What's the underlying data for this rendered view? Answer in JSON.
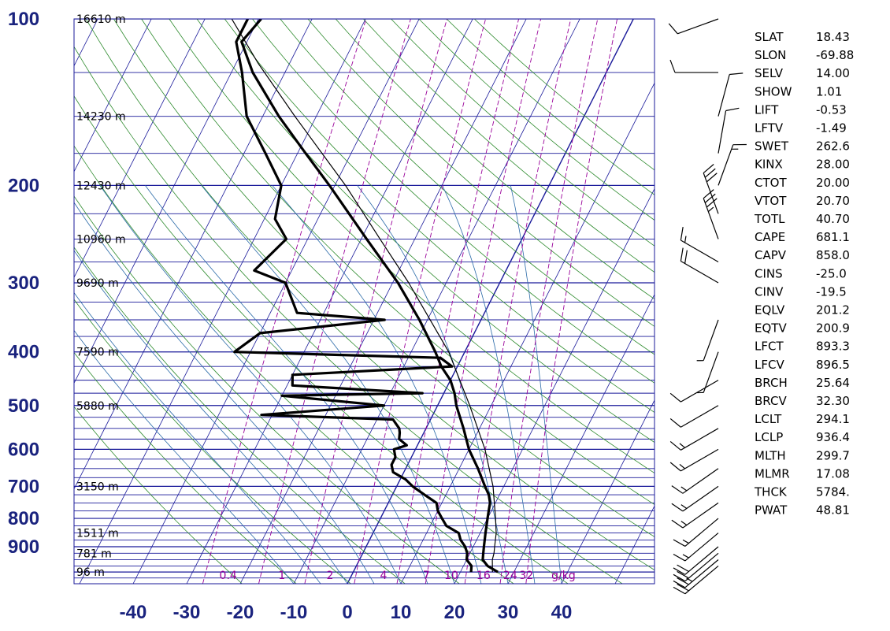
{
  "chart_data": {
    "type": "skew-t log-p sounding",
    "y_axis": {
      "unit_implied": "hPa",
      "ticks": [
        100,
        200,
        300,
        400,
        500,
        600,
        700,
        800,
        900
      ]
    },
    "x_axis": {
      "unit_implied": "°C",
      "ticks": [
        -40,
        -30,
        -20,
        -10,
        0,
        10,
        20,
        30,
        40
      ]
    },
    "height_labels": [
      {
        "p": 100,
        "text": "16610 m"
      },
      {
        "p": 150,
        "text": "14230 m"
      },
      {
        "p": 200,
        "text": "12430 m"
      },
      {
        "p": 250,
        "text": "10960 m"
      },
      {
        "p": 300,
        "text": "9690 m"
      },
      {
        "p": 400,
        "text": "7590 m"
      },
      {
        "p": 500,
        "text": "5880 m"
      },
      {
        "p": 700,
        "text": "3150 m"
      },
      {
        "p": 850,
        "text": "1511 m"
      },
      {
        "p": 925,
        "text": "781 m"
      },
      {
        "p": 1000,
        "text": "96 m"
      }
    ],
    "mixing_ratio_labels": [
      {
        "w": "0.4",
        "t": -25
      },
      {
        "w": "1",
        "t": -14
      },
      {
        "w": "2",
        "t": -5
      },
      {
        "w": "4",
        "t": 5
      },
      {
        "w": "7",
        "t": 13
      },
      {
        "w": "10",
        "t": 17
      },
      {
        "w": "16",
        "t": 23
      },
      {
        "w": "24",
        "t": 28
      },
      {
        "w": "32",
        "t": 31
      },
      {
        "w": "g/kg",
        "t": 37
      }
    ],
    "series": [
      {
        "role": "temperature",
        "points": [
          [
            1000,
            27
          ],
          [
            975,
            24.5
          ],
          [
            950,
            23
          ],
          [
            925,
            22.5
          ],
          [
            900,
            22
          ],
          [
            875,
            21.5
          ],
          [
            850,
            21
          ],
          [
            825,
            20.5
          ],
          [
            800,
            20
          ],
          [
            775,
            19.5
          ],
          [
            750,
            19
          ],
          [
            725,
            18
          ],
          [
            700,
            16.5
          ],
          [
            650,
            13.5
          ],
          [
            600,
            10
          ],
          [
            550,
            7
          ],
          [
            500,
            3.5
          ],
          [
            475,
            2
          ],
          [
            450,
            0
          ],
          [
            425,
            -3
          ],
          [
            400,
            -5.5
          ],
          [
            350,
            -11.5
          ],
          [
            300,
            -19
          ],
          [
            250,
            -29
          ],
          [
            200,
            -41
          ],
          [
            175,
            -48.5
          ],
          [
            150,
            -57
          ],
          [
            125,
            -66
          ],
          [
            110,
            -71
          ],
          [
            100,
            -69.5
          ]
        ]
      },
      {
        "role": "dewpoint",
        "points": [
          [
            1000,
            22
          ],
          [
            975,
            21.5
          ],
          [
            950,
            20
          ],
          [
            925,
            19.5
          ],
          [
            900,
            18.5
          ],
          [
            875,
            17
          ],
          [
            850,
            16
          ],
          [
            825,
            13
          ],
          [
            800,
            11.5
          ],
          [
            775,
            10
          ],
          [
            750,
            9
          ],
          [
            725,
            6
          ],
          [
            700,
            3
          ],
          [
            680,
            1
          ],
          [
            660,
            -2
          ],
          [
            640,
            -3
          ],
          [
            620,
            -3
          ],
          [
            600,
            -4
          ],
          [
            590,
            -2
          ],
          [
            575,
            -4
          ],
          [
            560,
            -4.5
          ],
          [
            550,
            -5
          ],
          [
            540,
            -6
          ],
          [
            530,
            -7
          ],
          [
            520,
            -32
          ],
          [
            500,
            -10
          ],
          [
            480,
            -30
          ],
          [
            475,
            -4
          ],
          [
            460,
            -29
          ],
          [
            440,
            -30
          ],
          [
            425,
            -1
          ],
          [
            410,
            -4
          ],
          [
            400,
            -43
          ],
          [
            370,
            -40
          ],
          [
            350,
            -18
          ],
          [
            340,
            -35
          ],
          [
            300,
            -40
          ],
          [
            285,
            -47
          ],
          [
            250,
            -44
          ],
          [
            230,
            -48
          ],
          [
            200,
            -50
          ],
          [
            175,
            -56
          ],
          [
            150,
            -63
          ],
          [
            125,
            -68
          ],
          [
            110,
            -72
          ],
          [
            100,
            -72
          ]
        ]
      },
      {
        "role": "parcel",
        "points": [
          [
            1000,
            26
          ],
          [
            950,
            24.8
          ],
          [
            925,
            24.5
          ],
          [
            900,
            24
          ],
          [
            850,
            23
          ],
          [
            800,
            21.5
          ],
          [
            700,
            18
          ],
          [
            600,
            13
          ],
          [
            500,
            6
          ],
          [
            400,
            -3
          ],
          [
            300,
            -17
          ],
          [
            250,
            -26.5
          ],
          [
            200,
            -38
          ],
          [
            150,
            -54
          ],
          [
            120,
            -66
          ],
          [
            100,
            -75
          ]
        ]
      }
    ],
    "wind_barbs": [
      {
        "p": 975,
        "dir": 230,
        "spd": 20
      },
      {
        "p": 950,
        "dir": 230,
        "spd": 25
      },
      {
        "p": 925,
        "dir": 230,
        "spd": 20
      },
      {
        "p": 900,
        "dir": 230,
        "spd": 20
      },
      {
        "p": 850,
        "dir": 230,
        "spd": 15
      },
      {
        "p": 800,
        "dir": 230,
        "spd": 15
      },
      {
        "p": 750,
        "dir": 235,
        "spd": 15
      },
      {
        "p": 700,
        "dir": 235,
        "spd": 15
      },
      {
        "p": 650,
        "dir": 235,
        "spd": 15
      },
      {
        "p": 600,
        "dir": 240,
        "spd": 15
      },
      {
        "p": 550,
        "dir": 240,
        "spd": 15
      },
      {
        "p": 500,
        "dir": 240,
        "spd": 10
      },
      {
        "p": 450,
        "dir": 240,
        "spd": 10
      },
      {
        "p": 400,
        "dir": 200,
        "spd": 5
      },
      {
        "p": 350,
        "dir": 200,
        "spd": 5
      },
      {
        "p": 300,
        "dir": 300,
        "spd": 20
      },
      {
        "p": 275,
        "dir": 300,
        "spd": 15
      },
      {
        "p": 250,
        "dir": 340,
        "spd": 35
      },
      {
        "p": 225,
        "dir": 340,
        "spd": 30
      },
      {
        "p": 200,
        "dir": 20,
        "spd": 15
      },
      {
        "p": 175,
        "dir": 10,
        "spd": 10
      },
      {
        "p": 150,
        "dir": 15,
        "spd": 10
      },
      {
        "p": 125,
        "dir": 270,
        "spd": 10
      },
      {
        "p": 100,
        "dir": 250,
        "spd": 10
      }
    ],
    "colors": {
      "axis_labels": "#1a237e",
      "isobar": "#1a1a9a",
      "isotherm": "#1a1a9a",
      "dry_adiabat": "#2e8b2e",
      "moist_adiabat": "#2a6aa8",
      "mixing_ratio": "#990099",
      "sounding": "#000000"
    }
  },
  "stats": [
    {
      "name": "SLAT",
      "value": "18.43"
    },
    {
      "name": "SLON",
      "value": "-69.88"
    },
    {
      "name": "SELV",
      "value": "14.00"
    },
    {
      "name": "SHOW",
      "value": "1.01"
    },
    {
      "name": "LIFT",
      "value": "-0.53"
    },
    {
      "name": "LFTV",
      "value": "-1.49"
    },
    {
      "name": "SWET",
      "value": "262.6"
    },
    {
      "name": "KINX",
      "value": "28.00"
    },
    {
      "name": "CTOT",
      "value": "20.00"
    },
    {
      "name": "VTOT",
      "value": "20.70"
    },
    {
      "name": "TOTL",
      "value": "40.70"
    },
    {
      "name": "CAPE",
      "value": "681.1"
    },
    {
      "name": "CAPV",
      "value": "858.0"
    },
    {
      "name": "CINS",
      "value": "-25.0"
    },
    {
      "name": "CINV",
      "value": "-19.5"
    },
    {
      "name": "EQLV",
      "value": "201.2"
    },
    {
      "name": "EQTV",
      "value": "200.9"
    },
    {
      "name": "LFCT",
      "value": "893.3"
    },
    {
      "name": "LFCV",
      "value": "896.5"
    },
    {
      "name": "BRCH",
      "value": "25.64"
    },
    {
      "name": "BRCV",
      "value": "32.30"
    },
    {
      "name": "LCLT",
      "value": "294.1"
    },
    {
      "name": "LCLP",
      "value": "936.4"
    },
    {
      "name": "MLTH",
      "value": "299.7"
    },
    {
      "name": "MLMR",
      "value": "17.08"
    },
    {
      "name": "THCK",
      "value": "5784."
    },
    {
      "name": "PWAT",
      "value": "48.81"
    }
  ]
}
